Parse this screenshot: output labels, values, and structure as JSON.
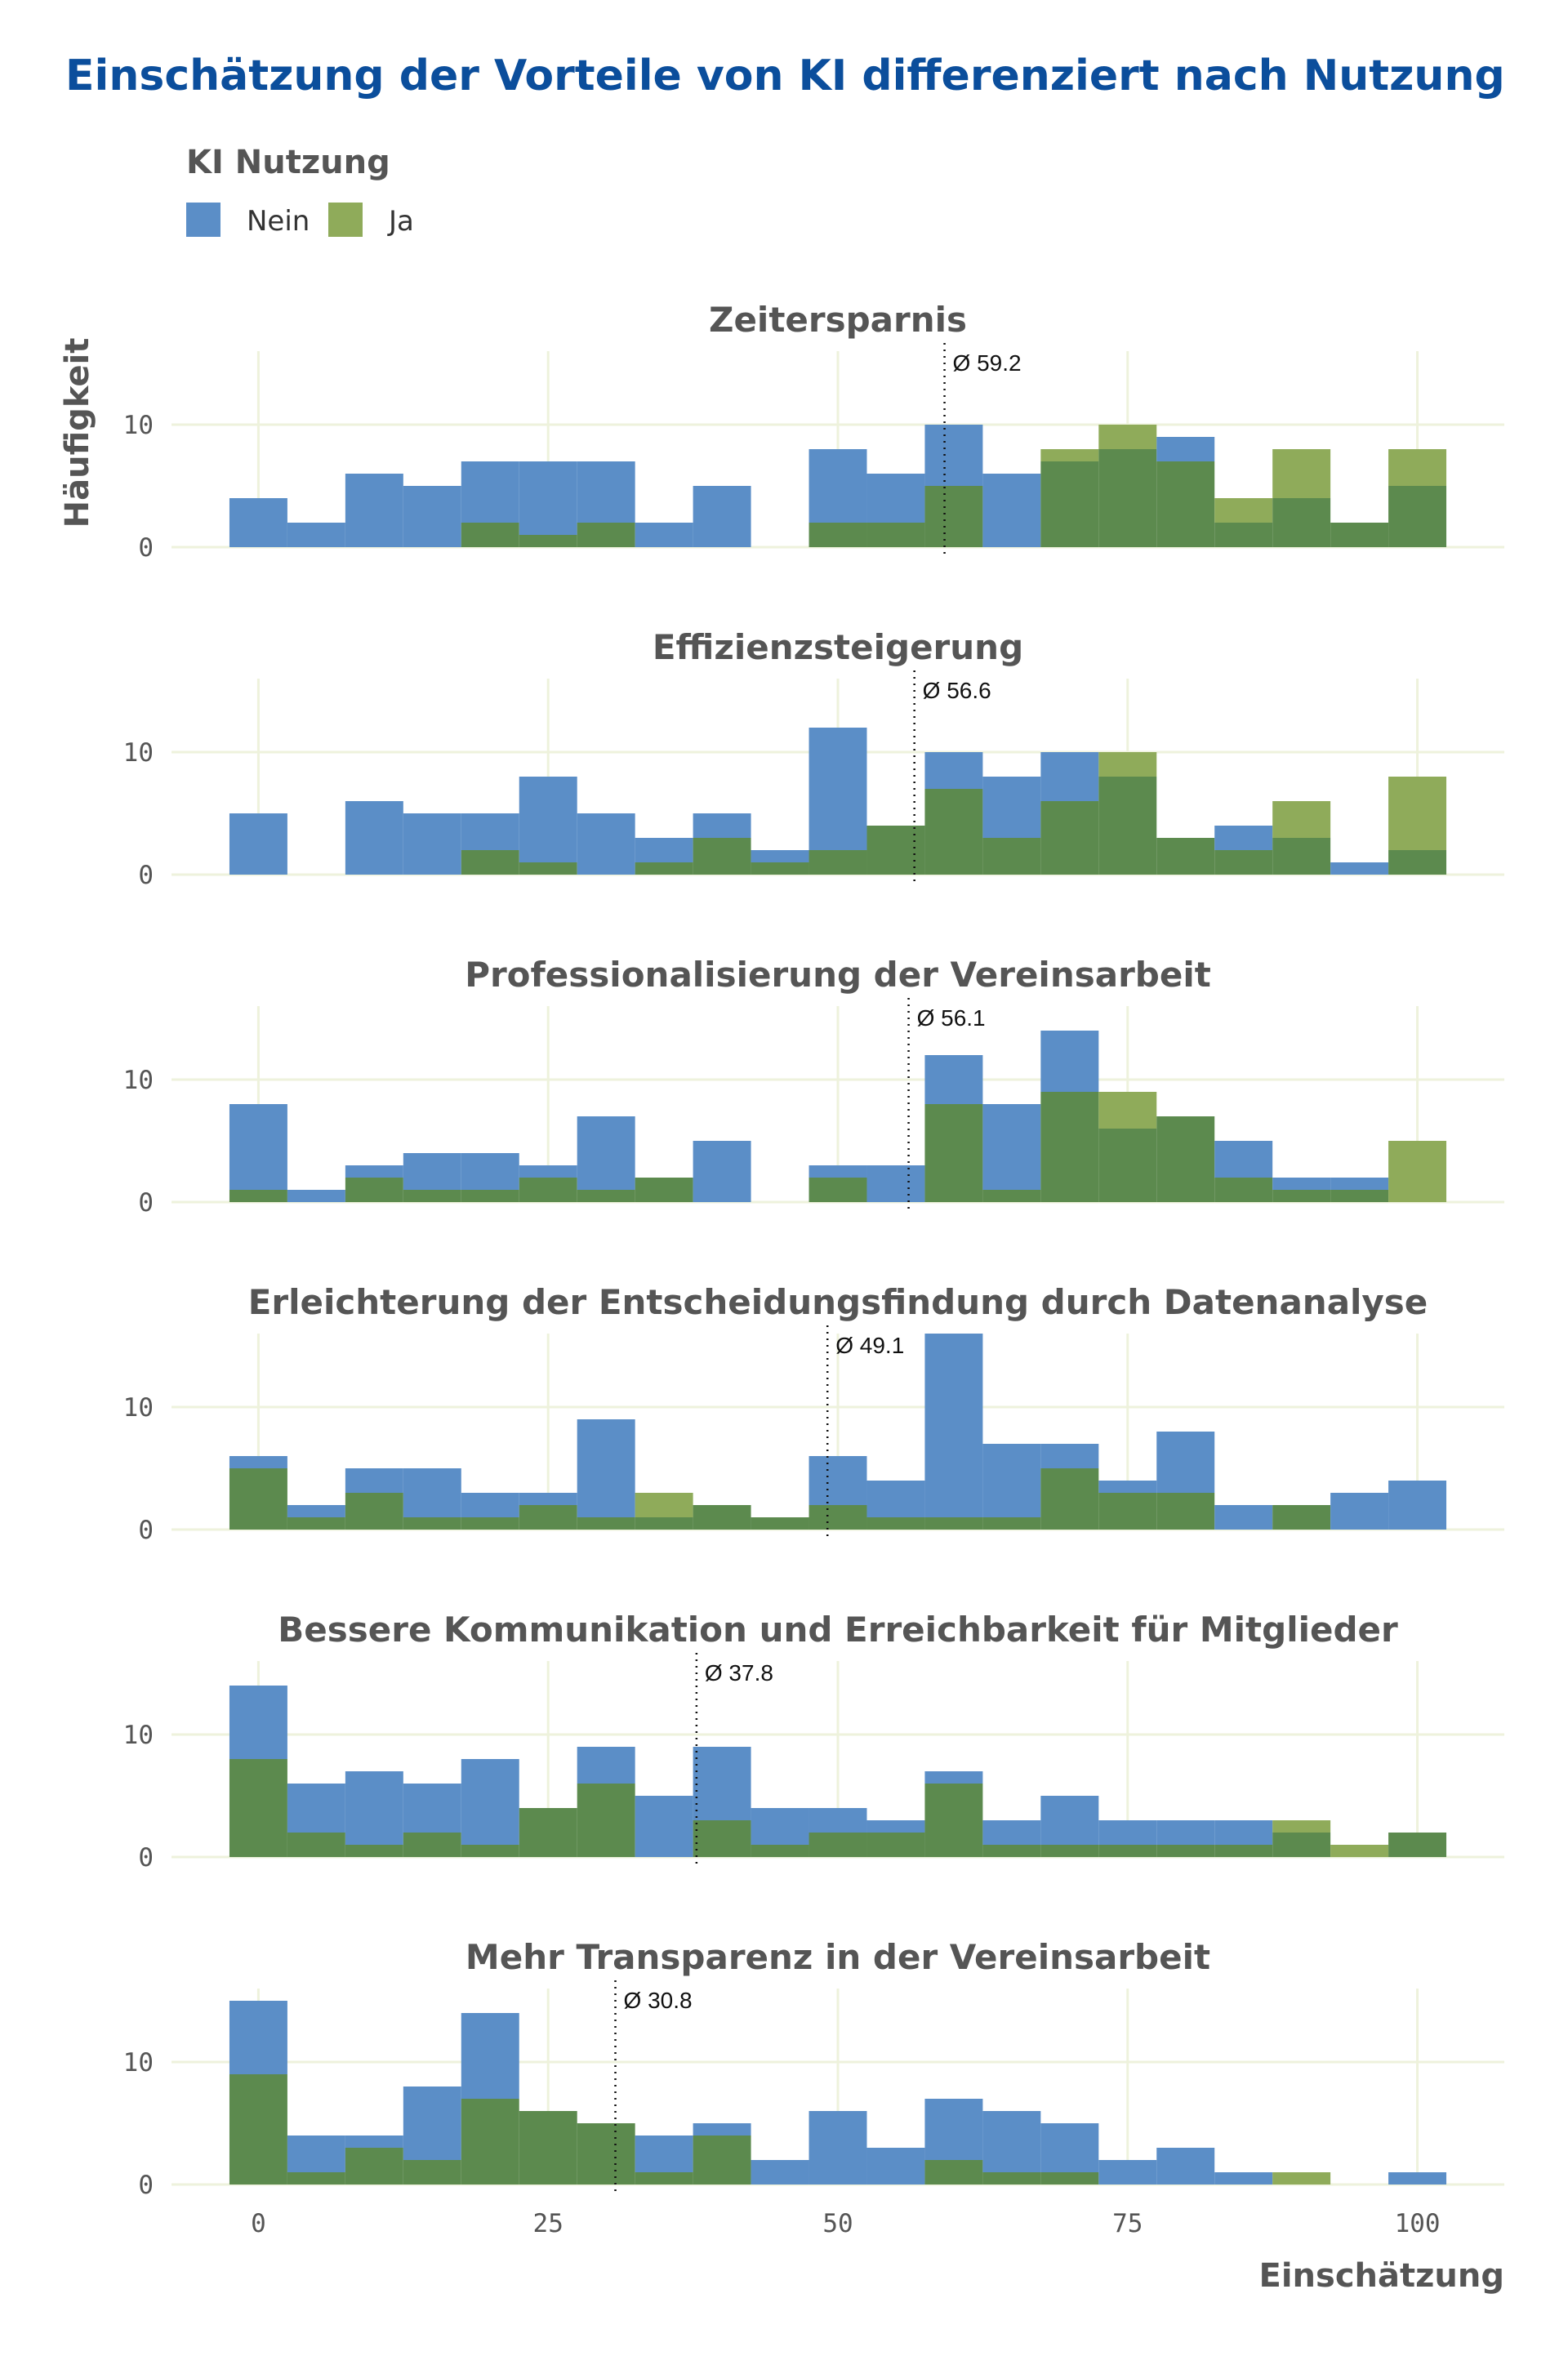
{
  "title": "Einschätzung der Vorteile von KI differenziert nach Nutzung",
  "colors": {
    "title": "#0b4e9c",
    "text": "#555555",
    "grid": "#eef2dc",
    "nein": "#5b8ec7",
    "ja": "#8fab5a",
    "overlap": "#5c8a4e"
  },
  "legend": {
    "title": "KI Nutzung",
    "items": [
      {
        "label": "Nein",
        "color": "#5b8ec7"
      },
      {
        "label": "Ja",
        "color": "#8fab5a"
      }
    ]
  },
  "chart_data": {
    "type": "histogram",
    "xlabel": "Einschätzung",
    "ylabel": "Häufigkeit",
    "xlim": [
      -7.5,
      107.5
    ],
    "x_ticks": [
      "0",
      "25",
      "50",
      "75",
      "100"
    ],
    "x_tick_values": [
      0,
      25,
      50,
      75,
      100
    ],
    "ylim": [
      0,
      16
    ],
    "y_ticks": [
      "0",
      "10"
    ],
    "y_tick_values": [
      0,
      10
    ],
    "grid": true,
    "legend_position": "top-left",
    "bin_width": 5,
    "bin_centers": [
      0,
      5,
      10,
      15,
      20,
      25,
      30,
      35,
      40,
      45,
      50,
      55,
      60,
      65,
      70,
      75,
      80,
      85,
      90,
      95,
      100
    ],
    "panels": [
      {
        "title": "Zeitersparnis",
        "mean": 59.2,
        "mean_label": "Ø 59.2",
        "series": [
          {
            "name": "Nein",
            "values": [
              4,
              2,
              6,
              5,
              7,
              7,
              7,
              2,
              5,
              0,
              8,
              6,
              10,
              6,
              7,
              8,
              9,
              2,
              4,
              2,
              5
            ]
          },
          {
            "name": "Ja",
            "values": [
              0,
              0,
              0,
              0,
              2,
              1,
              2,
              0,
              0,
              0,
              2,
              2,
              5,
              0,
              8,
              10,
              7,
              4,
              8,
              2,
              8
            ]
          }
        ]
      },
      {
        "title": "Effizienzsteigerung",
        "mean": 56.6,
        "mean_label": "Ø 56.6",
        "series": [
          {
            "name": "Nein",
            "values": [
              5,
              0,
              6,
              5,
              5,
              8,
              5,
              3,
              5,
              2,
              12,
              4,
              10,
              8,
              10,
              8,
              3,
              4,
              3,
              1,
              2
            ]
          },
          {
            "name": "Ja",
            "values": [
              0,
              0,
              0,
              0,
              2,
              1,
              0,
              1,
              3,
              1,
              2,
              4,
              7,
              3,
              6,
              10,
              3,
              2,
              6,
              0,
              8
            ]
          }
        ]
      },
      {
        "title": "Professionalisierung der Vereinsarbeit",
        "mean": 56.1,
        "mean_label": "Ø 56.1",
        "series": [
          {
            "name": "Nein",
            "values": [
              8,
              1,
              3,
              4,
              4,
              3,
              7,
              2,
              5,
              0,
              3,
              3,
              12,
              8,
              14,
              6,
              7,
              5,
              2,
              2,
              0
            ]
          },
          {
            "name": "Ja",
            "values": [
              1,
              0,
              2,
              1,
              1,
              2,
              1,
              2,
              0,
              0,
              2,
              0,
              8,
              1,
              9,
              9,
              7,
              2,
              1,
              1,
              5
            ]
          }
        ]
      },
      {
        "title": "Erleichterung der Entscheidungsfindung durch Datenanalyse",
        "mean": 49.1,
        "mean_label": "Ø 49.1",
        "series": [
          {
            "name": "Nein",
            "values": [
              6,
              2,
              5,
              5,
              3,
              3,
              9,
              1,
              2,
              1,
              6,
              4,
              16,
              7,
              7,
              4,
              8,
              2,
              2,
              3,
              4
            ]
          },
          {
            "name": "Ja",
            "values": [
              5,
              1,
              3,
              1,
              1,
              2,
              1,
              3,
              2,
              1,
              2,
              1,
              1,
              1,
              5,
              3,
              3,
              0,
              2,
              0,
              0
            ]
          }
        ]
      },
      {
        "title": "Bessere Kommunikation und Erreichbarkeit für Mitglieder",
        "mean": 37.8,
        "mean_label": "Ø 37.8",
        "series": [
          {
            "name": "Nein",
            "values": [
              14,
              6,
              7,
              6,
              8,
              4,
              9,
              5,
              9,
              4,
              4,
              3,
              7,
              3,
              5,
              3,
              3,
              3,
              2,
              0,
              2
            ]
          },
          {
            "name": "Ja",
            "values": [
              8,
              2,
              1,
              2,
              1,
              4,
              6,
              0,
              3,
              1,
              2,
              2,
              6,
              1,
              1,
              1,
              1,
              1,
              3,
              1,
              2
            ]
          }
        ]
      },
      {
        "title": "Mehr Transparenz in der Vereinsarbeit",
        "mean": 30.8,
        "mean_label": "Ø 30.8",
        "series": [
          {
            "name": "Nein",
            "values": [
              15,
              4,
              4,
              8,
              14,
              6,
              5,
              4,
              5,
              2,
              6,
              3,
              7,
              6,
              5,
              2,
              3,
              1,
              0,
              0,
              1
            ]
          },
          {
            "name": "Ja",
            "values": [
              9,
              1,
              3,
              2,
              7,
              6,
              5,
              1,
              4,
              0,
              0,
              0,
              2,
              1,
              1,
              0,
              0,
              0,
              1,
              0,
              0
            ]
          }
        ]
      }
    ]
  }
}
